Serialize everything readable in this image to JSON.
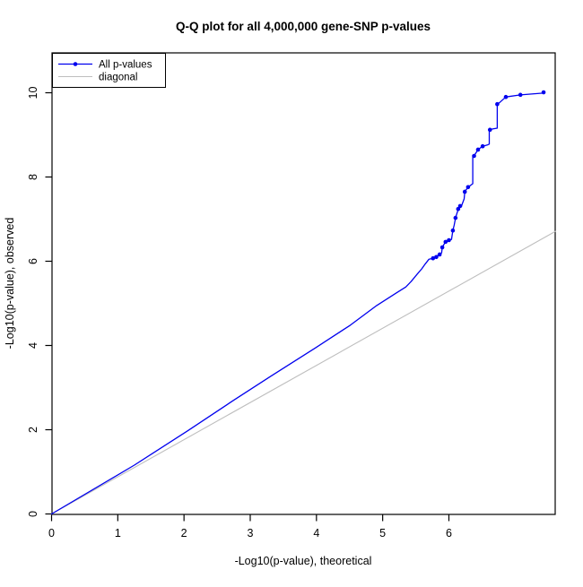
{
  "title": "Q-Q plot for all 4,000,000 gene-SNP p-values",
  "axes": {
    "x_label": "-Log10(p-value), theoretical",
    "y_label": "-Log10(p-value), observed",
    "x_ticks": [
      0,
      1,
      2,
      3,
      4,
      5,
      6
    ],
    "y_ticks": [
      0,
      2,
      4,
      6,
      8,
      10
    ]
  },
  "legend": {
    "entries": [
      {
        "label": "All p-values",
        "color": "#0000EE",
        "marker": true
      },
      {
        "label": "diagonal",
        "color": "#BEBEBE",
        "marker": false
      }
    ]
  },
  "colors": {
    "curve": "#0000EE",
    "diagonal": "#BEBEBE",
    "axis": "#000000",
    "background": "#FFFFFF"
  },
  "chart_data": {
    "type": "line",
    "title": "Q-Q plot for all 4,000,000 gene-SNP p-values",
    "xlabel": "-Log10(p-value), theoretical",
    "ylabel": "-Log10(p-value), observed",
    "xlim": [
      0,
      7.61
    ],
    "ylim": [
      0,
      10.95
    ],
    "x_ticks": [
      0,
      1,
      2,
      3,
      4,
      5,
      6
    ],
    "y_ticks": [
      0,
      2,
      4,
      6,
      8,
      10
    ],
    "grid": false,
    "legend_position": "top-left",
    "series": [
      {
        "name": "All p-values",
        "color": "#0000EE",
        "points": [
          [
            0,
            0
          ],
          [
            1.25,
            1.16
          ],
          [
            2.05,
            1.97
          ],
          [
            2.74,
            2.69
          ],
          [
            3.31,
            3.27
          ],
          [
            3.99,
            3.95
          ],
          [
            4.51,
            4.48
          ],
          [
            4.91,
            4.95
          ],
          [
            5.2,
            5.24
          ],
          [
            5.35,
            5.39
          ],
          [
            5.43,
            5.52
          ],
          [
            5.52,
            5.69
          ],
          [
            5.59,
            5.82
          ],
          [
            5.64,
            5.93
          ],
          [
            5.7,
            6.05
          ],
          [
            5.76,
            6.07
          ],
          [
            5.86,
            6.16
          ],
          [
            5.89,
            6.2
          ],
          [
            5.9,
            6.33
          ],
          [
            5.94,
            6.44
          ],
          [
            6.0,
            6.5
          ],
          [
            6.04,
            6.52
          ],
          [
            6.06,
            6.73
          ],
          [
            6.08,
            6.86
          ],
          [
            6.1,
            7.03
          ],
          [
            6.13,
            7.18
          ],
          [
            6.16,
            7.27
          ],
          [
            6.19,
            7.31
          ],
          [
            6.23,
            7.48
          ],
          [
            6.24,
            7.65
          ],
          [
            6.29,
            7.76
          ],
          [
            6.36,
            7.84
          ],
          [
            6.36,
            8.48
          ],
          [
            6.38,
            8.5
          ],
          [
            6.44,
            8.65
          ],
          [
            6.51,
            8.73
          ],
          [
            6.58,
            8.76
          ],
          [
            6.61,
            8.78
          ],
          [
            6.61,
            9.1
          ],
          [
            6.62,
            9.12
          ],
          [
            6.66,
            9.14
          ],
          [
            6.73,
            9.16
          ],
          [
            6.73,
            9.73
          ],
          [
            6.76,
            9.76
          ],
          [
            6.86,
            9.9
          ],
          [
            7.08,
            9.95
          ],
          [
            7.4,
            9.99
          ],
          [
            7.43,
            10.01
          ]
        ],
        "markers": [
          [
            5.76,
            6.07
          ],
          [
            5.81,
            6.1
          ],
          [
            5.86,
            6.16
          ],
          [
            5.9,
            6.33
          ],
          [
            5.95,
            6.46
          ],
          [
            6.0,
            6.5
          ],
          [
            6.06,
            6.73
          ],
          [
            6.1,
            7.03
          ],
          [
            6.14,
            7.24
          ],
          [
            6.17,
            7.31
          ],
          [
            6.24,
            7.65
          ],
          [
            6.29,
            7.76
          ],
          [
            6.38,
            8.5
          ],
          [
            6.44,
            8.65
          ],
          [
            6.51,
            8.73
          ],
          [
            6.62,
            9.12
          ],
          [
            6.73,
            9.73
          ],
          [
            6.86,
            9.9
          ],
          [
            7.08,
            9.95
          ],
          [
            7.43,
            10.01
          ]
        ]
      },
      {
        "name": "diagonal",
        "color": "#BEBEBE",
        "points": [
          [
            0,
            0
          ],
          [
            7.61,
            6.71
          ]
        ],
        "markers": []
      }
    ]
  }
}
